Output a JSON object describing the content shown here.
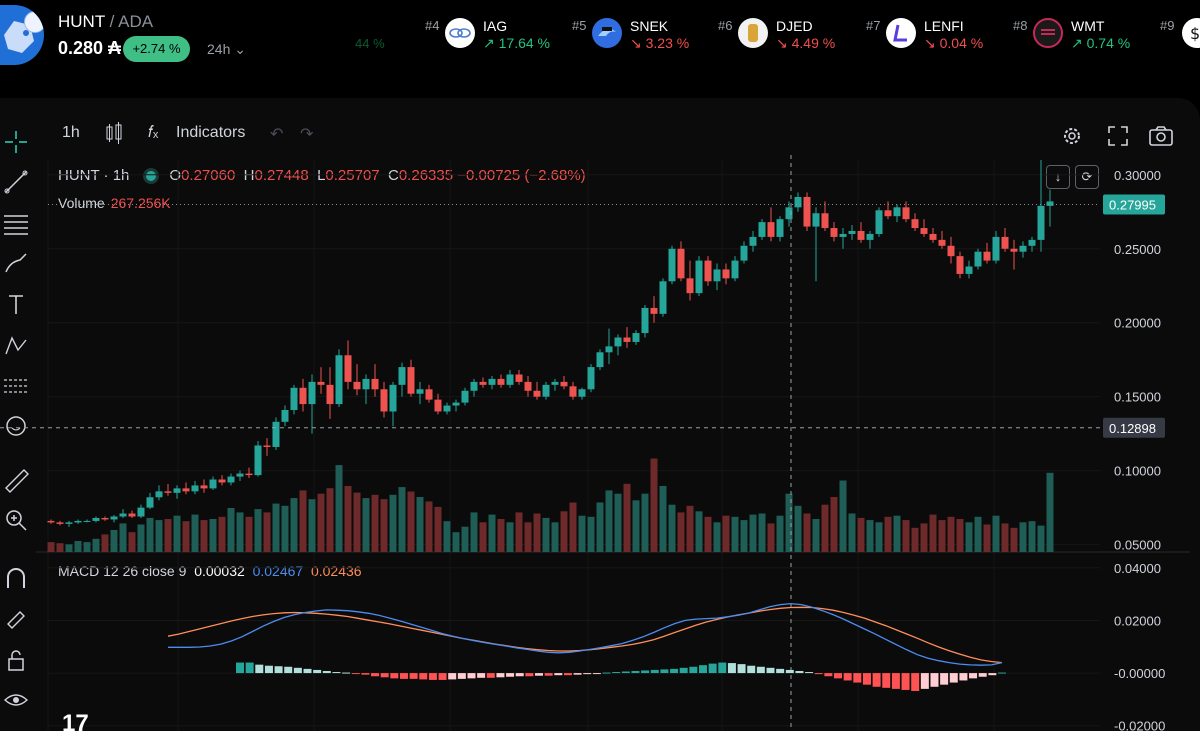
{
  "header": {
    "symbol": "HUNT",
    "quote": "/ ADA",
    "price": "0.280 ₳",
    "change": "+2.74 %",
    "timeframe": "24h ⌄",
    "ghost": "44 %"
  },
  "ticker": [
    {
      "rank": "#4",
      "symbol": "IAG",
      "change": "↗ 17.64 %",
      "dir": "up",
      "color": "#ffffff"
    },
    {
      "rank": "#5",
      "symbol": "SNEK",
      "change": "↘ 3.23 %",
      "dir": "dn",
      "color": "#2f6de0"
    },
    {
      "rank": "#6",
      "symbol": "DJED",
      "change": "↘ 4.49 %",
      "dir": "dn",
      "color": "#f2f2f2"
    },
    {
      "rank": "#7",
      "symbol": "LENFI",
      "change": "↘ 0.04 %",
      "dir": "dn",
      "color": "#ffffff"
    },
    {
      "rank": "#8",
      "symbol": "WMT",
      "change": "↗ 0.74 %",
      "dir": "up",
      "color": "#1a1a1a"
    },
    {
      "rank": "#9",
      "symbol": "",
      "change": "",
      "dir": "up",
      "color": "#ffffff"
    }
  ],
  "toolbar": {
    "interval": "1h",
    "indicators": "Indicators"
  },
  "legend": {
    "title": "HUNT · 1h",
    "o_label": "O",
    "o": "0.27060",
    "h_label": "H",
    "h": "0.27448",
    "l_label": "L",
    "l": "0.25707",
    "c_label": "C",
    "c": "0.26335",
    "change": "−0.00725 (−2.68%)",
    "volume_label": "Volume",
    "volume": "267.256K"
  },
  "macd_legend": {
    "name": "MACD 12 26 close 9",
    "hist": "0.00032",
    "macd": "0.02467",
    "signal": "0.02436"
  },
  "colors": {
    "up": "#26a69a",
    "down": "#ef5350",
    "macd": "#4d8cf0",
    "signal": "#ff8f5a",
    "last_price_bg": "#26a69a"
  },
  "chart_data": [
    {
      "type": "candlestick",
      "title": "HUNT · 1h",
      "y_ticks": [
        "0.30000",
        "0.25000",
        "0.20000",
        "0.15000",
        "0.10000",
        "0.05000"
      ],
      "ylim": [
        0.045,
        0.31
      ],
      "last_price": "0.27995",
      "crosshair_price": "0.12898",
      "ohlc": [
        [
          0.066,
          0.067,
          0.064,
          0.065
        ],
        [
          0.065,
          0.066,
          0.063,
          0.064
        ],
        [
          0.064,
          0.066,
          0.062,
          0.065
        ],
        [
          0.065,
          0.067,
          0.064,
          0.066
        ],
        [
          0.066,
          0.067,
          0.065,
          0.066
        ],
        [
          0.066,
          0.069,
          0.065,
          0.068
        ],
        [
          0.068,
          0.069,
          0.066,
          0.067
        ],
        [
          0.067,
          0.07,
          0.065,
          0.069
        ],
        [
          0.069,
          0.074,
          0.068,
          0.071
        ],
        [
          0.071,
          0.073,
          0.068,
          0.069
        ],
        [
          0.069,
          0.077,
          0.068,
          0.075
        ],
        [
          0.075,
          0.085,
          0.074,
          0.082
        ],
        [
          0.082,
          0.09,
          0.08,
          0.086
        ],
        [
          0.086,
          0.091,
          0.083,
          0.085
        ],
        [
          0.085,
          0.09,
          0.081,
          0.088
        ],
        [
          0.088,
          0.092,
          0.084,
          0.086
        ],
        [
          0.086,
          0.093,
          0.084,
          0.09
        ],
        [
          0.09,
          0.094,
          0.085,
          0.088
        ],
        [
          0.088,
          0.096,
          0.087,
          0.094
        ],
        [
          0.094,
          0.097,
          0.09,
          0.092
        ],
        [
          0.092,
          0.098,
          0.09,
          0.096
        ],
        [
          0.096,
          0.1,
          0.093,
          0.098
        ],
        [
          0.098,
          0.102,
          0.095,
          0.097
        ],
        [
          0.097,
          0.12,
          0.096,
          0.117
        ],
        [
          0.117,
          0.122,
          0.11,
          0.116
        ],
        [
          0.116,
          0.136,
          0.114,
          0.133
        ],
        [
          0.133,
          0.144,
          0.13,
          0.141
        ],
        [
          0.141,
          0.158,
          0.138,
          0.156
        ],
        [
          0.156,
          0.162,
          0.14,
          0.145
        ],
        [
          0.145,
          0.165,
          0.125,
          0.16
        ],
        [
          0.16,
          0.17,
          0.152,
          0.158
        ],
        [
          0.158,
          0.17,
          0.135,
          0.145
        ],
        [
          0.145,
          0.182,
          0.143,
          0.178
        ],
        [
          0.178,
          0.188,
          0.155,
          0.16
        ],
        [
          0.16,
          0.172,
          0.151,
          0.155
        ],
        [
          0.155,
          0.165,
          0.145,
          0.162
        ],
        [
          0.162,
          0.172,
          0.15,
          0.155
        ],
        [
          0.155,
          0.16,
          0.136,
          0.14
        ],
        [
          0.14,
          0.16,
          0.13,
          0.158
        ],
        [
          0.158,
          0.173,
          0.15,
          0.17
        ],
        [
          0.17,
          0.175,
          0.15,
          0.152
        ],
        [
          0.152,
          0.16,
          0.145,
          0.155
        ],
        [
          0.155,
          0.158,
          0.146,
          0.148
        ],
        [
          0.148,
          0.152,
          0.138,
          0.14
        ],
        [
          0.14,
          0.146,
          0.138,
          0.144
        ],
        [
          0.144,
          0.148,
          0.14,
          0.146
        ],
        [
          0.146,
          0.156,
          0.144,
          0.154
        ],
        [
          0.154,
          0.162,
          0.15,
          0.16
        ],
        [
          0.16,
          0.163,
          0.156,
          0.158
        ],
        [
          0.158,
          0.164,
          0.155,
          0.162
        ],
        [
          0.162,
          0.165,
          0.156,
          0.158
        ],
        [
          0.158,
          0.168,
          0.156,
          0.165
        ],
        [
          0.165,
          0.168,
          0.158,
          0.16
        ],
        [
          0.16,
          0.164,
          0.15,
          0.154
        ],
        [
          0.154,
          0.16,
          0.148,
          0.15
        ],
        [
          0.15,
          0.16,
          0.148,
          0.158
        ],
        [
          0.158,
          0.162,
          0.154,
          0.16
        ],
        [
          0.16,
          0.164,
          0.155,
          0.157
        ],
        [
          0.157,
          0.16,
          0.148,
          0.15
        ],
        [
          0.15,
          0.156,
          0.148,
          0.155
        ],
        [
          0.155,
          0.172,
          0.153,
          0.17
        ],
        [
          0.17,
          0.182,
          0.168,
          0.18
        ],
        [
          0.18,
          0.196,
          0.172,
          0.184
        ],
        [
          0.184,
          0.192,
          0.178,
          0.19
        ],
        [
          0.19,
          0.197,
          0.183,
          0.187
        ],
        [
          0.187,
          0.195,
          0.185,
          0.193
        ],
        [
          0.193,
          0.212,
          0.19,
          0.21
        ],
        [
          0.21,
          0.218,
          0.2,
          0.206
        ],
        [
          0.206,
          0.23,
          0.204,
          0.228
        ],
        [
          0.228,
          0.252,
          0.226,
          0.25
        ],
        [
          0.25,
          0.255,
          0.228,
          0.23
        ],
        [
          0.23,
          0.242,
          0.215,
          0.22
        ],
        [
          0.22,
          0.245,
          0.218,
          0.242
        ],
        [
          0.242,
          0.245,
          0.225,
          0.228
        ],
        [
          0.228,
          0.24,
          0.222,
          0.236
        ],
        [
          0.236,
          0.24,
          0.226,
          0.23
        ],
        [
          0.23,
          0.245,
          0.228,
          0.242
        ],
        [
          0.242,
          0.255,
          0.24,
          0.252
        ],
        [
          0.252,
          0.262,
          0.248,
          0.258
        ],
        [
          0.258,
          0.27,
          0.256,
          0.268
        ],
        [
          0.268,
          0.278,
          0.255,
          0.258
        ],
        [
          0.258,
          0.272,
          0.255,
          0.27
        ],
        [
          0.27,
          0.282,
          0.265,
          0.278
        ],
        [
          0.278,
          0.288,
          0.275,
          0.285
        ],
        [
          0.285,
          0.288,
          0.262,
          0.265
        ],
        [
          0.265,
          0.278,
          0.228,
          0.274
        ],
        [
          0.274,
          0.282,
          0.262,
          0.264
        ],
        [
          0.264,
          0.268,
          0.255,
          0.258
        ],
        [
          0.258,
          0.264,
          0.25,
          0.26
        ],
        [
          0.26,
          0.266,
          0.256,
          0.262
        ],
        [
          0.262,
          0.268,
          0.254,
          0.256
        ],
        [
          0.256,
          0.262,
          0.25,
          0.26
        ],
        [
          0.26,
          0.278,
          0.258,
          0.276
        ],
        [
          0.276,
          0.282,
          0.27,
          0.272
        ],
        [
          0.272,
          0.28,
          0.268,
          0.278
        ],
        [
          0.278,
          0.282,
          0.268,
          0.27
        ],
        [
          0.27,
          0.274,
          0.262,
          0.264
        ],
        [
          0.264,
          0.27,
          0.258,
          0.26
        ],
        [
          0.26,
          0.264,
          0.254,
          0.256
        ],
        [
          0.256,
          0.262,
          0.25,
          0.252
        ],
        [
          0.252,
          0.258,
          0.24,
          0.245
        ],
        [
          0.245,
          0.248,
          0.23,
          0.233
        ],
        [
          0.233,
          0.242,
          0.23,
          0.238
        ],
        [
          0.238,
          0.25,
          0.236,
          0.248
        ],
        [
          0.248,
          0.254,
          0.24,
          0.242
        ],
        [
          0.242,
          0.262,
          0.24,
          0.258
        ],
        [
          0.258,
          0.264,
          0.248,
          0.25
        ],
        [
          0.25,
          0.256,
          0.236,
          0.248
        ],
        [
          0.248,
          0.255,
          0.244,
          0.252
        ],
        [
          0.252,
          0.258,
          0.248,
          0.256
        ],
        [
          0.256,
          0.31,
          0.248,
          0.279
        ],
        [
          0.279,
          0.29,
          0.265,
          0.282
        ]
      ],
      "volume": [
        0.9,
        0.8,
        0.7,
        1.0,
        0.9,
        1.2,
        1.6,
        2.0,
        2.6,
        1.8,
        2.5,
        3.1,
        2.9,
        3.0,
        3.3,
        2.8,
        3.4,
        2.9,
        3.0,
        3.2,
        4.0,
        3.6,
        3.2,
        3.9,
        3.6,
        4.4,
        4.2,
        4.9,
        5.6,
        4.8,
        5.3,
        5.8,
        7.9,
        6.0,
        5.4,
        4.9,
        5.2,
        4.8,
        5.2,
        5.9,
        5.5,
        5.0,
        4.6,
        4.1,
        2.8,
        1.8,
        2.3,
        3.6,
        2.7,
        3.4,
        3.0,
        2.7,
        3.6,
        2.7,
        3.5,
        3.1,
        2.7,
        3.7,
        4.5,
        3.3,
        3.2,
        4.5,
        5.6,
        5.3,
        6.2,
        4.7,
        5.3,
        8.5,
        6.0,
        4.3,
        3.6,
        4.2,
        3.7,
        3.2,
        2.7,
        3.3,
        3.2,
        2.9,
        3.4,
        3.5,
        2.6,
        3.3,
        5.3,
        4.2,
        3.5,
        3.0,
        4.3,
        5.0,
        6.5,
        3.5,
        3.1,
        2.9,
        2.7,
        3.2,
        3.3,
        2.9,
        2.2,
        2.6,
        3.4,
        2.9,
        3.2,
        3.0,
        2.7,
        3.2,
        2.5,
        3.3,
        2.6,
        2.2,
        2.7,
        2.8,
        2.4,
        7.2,
        5.9
      ],
      "volume_ylim": [
        0,
        10
      ]
    },
    {
      "type": "line",
      "title": "MACD 12 26 close 9",
      "y_ticks": [
        "0.04000",
        "0.02000",
        "-0.00000",
        "-0.02000"
      ],
      "ylim": [
        -0.022,
        0.046
      ],
      "series": [
        {
          "name": "MACD",
          "values": [
            0.0098,
            0.0098,
            0.0098,
            0.0099,
            0.0103,
            0.011,
            0.0122,
            0.0138,
            0.0158,
            0.0178,
            0.0196,
            0.0211,
            0.0222,
            0.023,
            0.0236,
            0.024,
            0.0239,
            0.0237,
            0.0233,
            0.0227,
            0.0219,
            0.0209,
            0.0198,
            0.0186,
            0.0174,
            0.0162,
            0.015,
            0.014,
            0.0131,
            0.0123,
            0.0116,
            0.0109,
            0.0103,
            0.0096,
            0.009,
            0.0084,
            0.0079,
            0.0077,
            0.0079,
            0.0084,
            0.009,
            0.0097,
            0.0104,
            0.0112,
            0.0124,
            0.0138,
            0.0154,
            0.0172,
            0.0188,
            0.02,
            0.0205,
            0.0207,
            0.0209,
            0.0214,
            0.022,
            0.0228,
            0.024,
            0.0252,
            0.026,
            0.0264,
            0.026,
            0.025,
            0.0237,
            0.0222,
            0.0205,
            0.0186,
            0.0167,
            0.0148,
            0.0128,
            0.0108,
            0.0088,
            0.007,
            0.0056,
            0.0047,
            0.004,
            0.0034,
            0.0031,
            0.003,
            0.0031,
            0.004
          ]
        },
        {
          "name": "Signal",
          "values": [
            0.014,
            0.0148,
            0.0158,
            0.0168,
            0.0178,
            0.0188,
            0.0198,
            0.0207,
            0.0215,
            0.0221,
            0.0226,
            0.0229,
            0.023,
            0.0229,
            0.0227,
            0.0224,
            0.022,
            0.0215,
            0.0208,
            0.0201,
            0.0194,
            0.0187,
            0.0179,
            0.0171,
            0.0163,
            0.0155,
            0.0147,
            0.0139,
            0.0131,
            0.0124,
            0.0117,
            0.011,
            0.0104,
            0.0098,
            0.0093,
            0.0089,
            0.0086,
            0.0084,
            0.0084,
            0.0086,
            0.0089,
            0.0093,
            0.0098,
            0.0103,
            0.0109,
            0.0117,
            0.0127,
            0.014,
            0.0154,
            0.0168,
            0.0182,
            0.0194,
            0.0204,
            0.0213,
            0.0221,
            0.0228,
            0.0235,
            0.0241,
            0.0246,
            0.0249,
            0.025,
            0.0249,
            0.0245,
            0.0239,
            0.023,
            0.022,
            0.0208,
            0.0194,
            0.018,
            0.0164,
            0.0148,
            0.0132,
            0.0115,
            0.0099,
            0.0085,
            0.0072,
            0.006,
            0.005,
            0.0044,
            0.004
          ]
        },
        {
          "name": "Histogram",
          "values": [
            0.004,
            0.004,
            0.0032,
            0.0028,
            0.0026,
            0.0024,
            0.002,
            0.0016,
            0.0012,
            0.0008,
            0.0004,
            0.0002,
            -0.0002,
            -0.0006,
            -0.0012,
            -0.0016,
            -0.002,
            -0.0022,
            -0.0022,
            -0.0024,
            -0.0026,
            -0.0026,
            -0.0024,
            -0.0022,
            -0.002,
            -0.0018,
            -0.0018,
            -0.0016,
            -0.0014,
            -0.0012,
            -0.0012,
            -0.001,
            -0.001,
            -0.0008,
            -0.0008,
            -0.0006,
            -0.0004,
            -0.0002,
            0.0002,
            0.0004,
            0.0006,
            0.0008,
            0.001,
            0.0012,
            0.0014,
            0.0016,
            0.002,
            0.0024,
            0.003,
            0.0036,
            0.004,
            0.0038,
            0.0034,
            0.0028,
            0.0024,
            0.002,
            0.0016,
            0.0012,
            0.0008,
            0.0004,
            -0.0004,
            -0.0012,
            -0.002,
            -0.0028,
            -0.0036,
            -0.0044,
            -0.0052,
            -0.0056,
            -0.006,
            -0.0064,
            -0.0068,
            -0.006,
            -0.0052,
            -0.0044,
            -0.0036,
            -0.0028,
            -0.002,
            -0.0014,
            -0.0008,
            0.0002
          ]
        }
      ]
    }
  ]
}
